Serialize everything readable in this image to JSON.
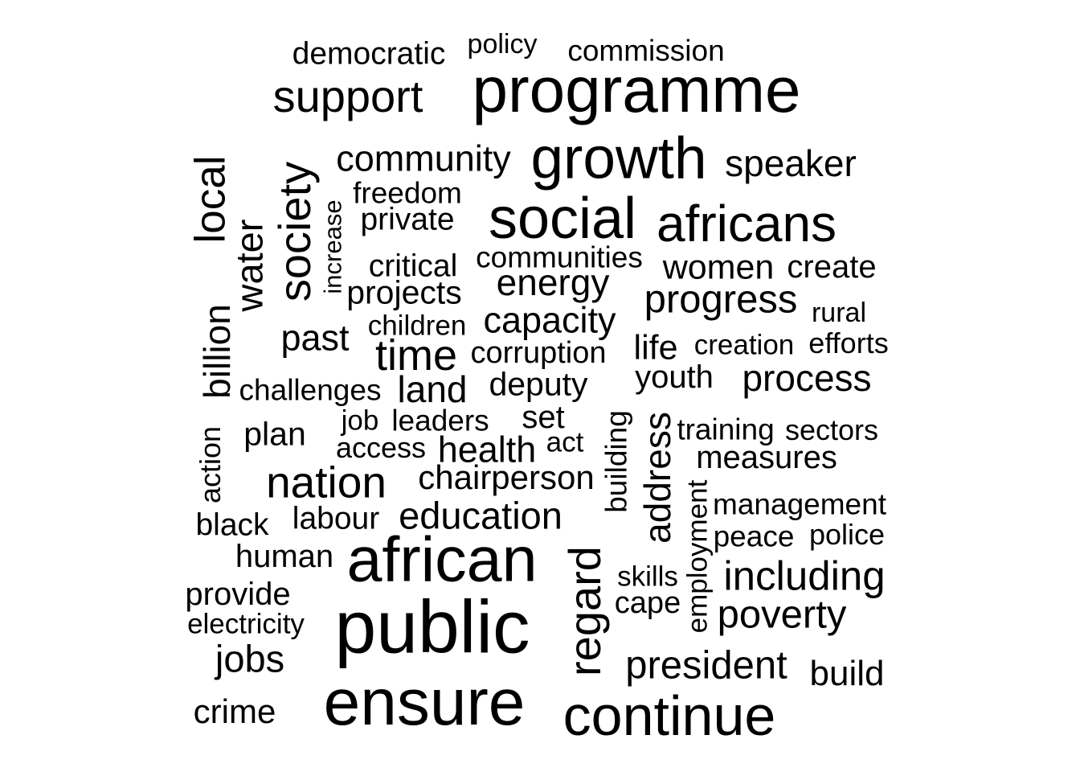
{
  "text_color": "#000000",
  "background_color": "#ffffff",
  "words": {
    "democratic": "democratic",
    "policy": "policy",
    "commission": "commission",
    "support": "support",
    "programme": "programme",
    "community": "community",
    "growth": "growth",
    "speaker": "speaker",
    "local": "local",
    "society": "society",
    "increase": "increase",
    "water": "water",
    "freedom": "freedom",
    "private": "private",
    "social": "social",
    "africans": "africans",
    "critical": "critical",
    "communities": "communities",
    "women": "women",
    "create": "create",
    "energy": "energy",
    "projects": "projects",
    "progress": "progress",
    "rural": "rural",
    "billion": "billion",
    "past": "past",
    "children": "children",
    "capacity": "capacity",
    "life": "life",
    "creation": "creation",
    "efforts": "efforts",
    "time": "time",
    "corruption": "corruption",
    "youth": "youth",
    "process": "process",
    "challenges": "challenges",
    "land": "land",
    "deputy": "deputy",
    "job": "job",
    "leaders": "leaders",
    "set": "set",
    "building": "building",
    "address": "address",
    "training": "training",
    "sectors": "sectors",
    "action": "action",
    "plan": "plan",
    "access": "access",
    "health": "health",
    "act": "act",
    "measures": "measures",
    "nation": "nation",
    "chairperson": "chairperson",
    "employment": "employment",
    "management": "management",
    "black": "black",
    "labour": "labour",
    "education": "education",
    "peace": "peace",
    "police": "police",
    "human": "human",
    "african": "african",
    "regard": "regard",
    "skills": "skills",
    "including": "including",
    "provide": "provide",
    "cape": "cape",
    "electricity": "electricity",
    "public": "public",
    "poverty": "poverty",
    "jobs": "jobs",
    "president": "president",
    "build": "build",
    "crime": "crime",
    "ensure": "ensure",
    "continue": "continue"
  }
}
